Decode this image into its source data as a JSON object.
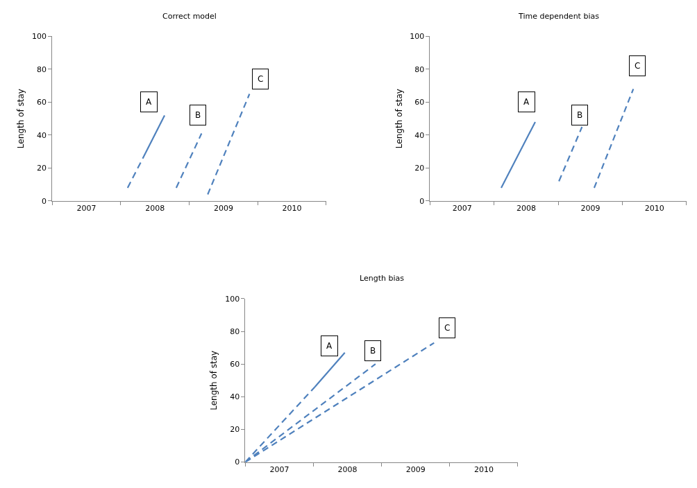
{
  "chart_data": [
    {
      "type": "line",
      "title": "Correct model",
      "ylabel": "Length of stay",
      "xlim": [
        2006.5,
        2010.5
      ],
      "xticks": [
        {
          "value": 2006.5,
          "label": null
        },
        2007,
        {
          "value": 2007.5,
          "label": null
        },
        2008,
        {
          "value": 2008.5,
          "label": null
        },
        2009,
        {
          "value": 2009.5,
          "label": null
        },
        2010,
        {
          "value": 2010.5,
          "label": null
        }
      ],
      "ylim": [
        0,
        100
      ],
      "yticks": [
        0,
        20,
        40,
        60,
        80,
        100
      ],
      "series": [
        {
          "color": "#4f81bd",
          "line_style": "dashed",
          "x": [
            2007.6,
            2007.86
          ],
          "values": [
            8,
            29
          ]
        },
        {
          "color": "#4f81bd",
          "line_style": "solid",
          "x": [
            2007.86,
            2008.14
          ],
          "values": [
            29,
            52
          ]
        },
        {
          "color": "#4f81bd",
          "line_style": "dashed",
          "x": [
            2008.31,
            2008.68
          ],
          "values": [
            8,
            41
          ]
        },
        {
          "color": "#4f81bd",
          "line_style": "dashed",
          "x": [
            2008.77,
            2009.38
          ],
          "values": [
            4,
            65
          ]
        }
      ],
      "annotations": [
        {
          "text": "A",
          "x": 2007.91,
          "y": 60
        },
        {
          "text": "B",
          "x": 2008.63,
          "y": 52
        },
        {
          "text": "C",
          "x": 2009.54,
          "y": 74
        }
      ]
    },
    {
      "type": "line",
      "title": "Time dependent bias",
      "ylabel": "Length of stay",
      "xlim": [
        2006.5,
        2010.5
      ],
      "xticks": [
        {
          "value": 2006.5,
          "label": null
        },
        2007,
        {
          "value": 2007.5,
          "label": null
        },
        2008,
        {
          "value": 2008.5,
          "label": null
        },
        2009,
        {
          "value": 2009.5,
          "label": null
        },
        2010,
        {
          "value": 2010.5,
          "label": null
        }
      ],
      "ylim": [
        0,
        100
      ],
      "yticks": [
        0,
        20,
        40,
        60,
        80,
        100
      ],
      "series": [
        {
          "color": "#4f81bd",
          "line_style": "solid",
          "x": [
            2007.61,
            2008.14
          ],
          "values": [
            8,
            48
          ]
        },
        {
          "color": "#4f81bd",
          "line_style": "dashed",
          "x": [
            2008.51,
            2008.87
          ],
          "values": [
            12,
            45
          ]
        },
        {
          "color": "#4f81bd",
          "line_style": "dashed",
          "x": [
            2009.06,
            2009.67
          ],
          "values": [
            8,
            68
          ]
        }
      ],
      "annotations": [
        {
          "text": "A",
          "x": 2008.01,
          "y": 60
        },
        {
          "text": "B",
          "x": 2008.83,
          "y": 52
        },
        {
          "text": "C",
          "x": 2009.73,
          "y": 82
        }
      ]
    },
    {
      "type": "line",
      "title": "Length bias",
      "ylabel": "Length of stay",
      "xlim": [
        2006.5,
        2010.5
      ],
      "xticks": [
        {
          "value": 2006.5,
          "label": null
        },
        2007,
        {
          "value": 2007.5,
          "label": null
        },
        2008,
        {
          "value": 2008.5,
          "label": null
        },
        2009,
        {
          "value": 2009.5,
          "label": null
        },
        2010,
        {
          "value": 2010.5,
          "label": null
        }
      ],
      "ylim": [
        0,
        100
      ],
      "yticks": [
        0,
        20,
        40,
        60,
        80,
        100
      ],
      "series": [
        {
          "color": "#4f81bd",
          "line_style": "dashed",
          "x": [
            2006.5,
            2007.52
          ],
          "values": [
            0,
            46
          ]
        },
        {
          "color": "#4f81bd",
          "line_style": "solid",
          "x": [
            2007.52,
            2007.96
          ],
          "values": [
            46,
            67
          ]
        },
        {
          "color": "#4f81bd",
          "line_style": "dashed",
          "x": [
            2006.5,
            2008.41
          ],
          "values": [
            0,
            60
          ]
        },
        {
          "color": "#4f81bd",
          "line_style": "dashed",
          "x": [
            2006.5,
            2009.27
          ],
          "values": [
            0,
            73
          ]
        }
      ],
      "annotations": [
        {
          "text": "A",
          "x": 2007.73,
          "y": 71
        },
        {
          "text": "B",
          "x": 2008.37,
          "y": 68
        },
        {
          "text": "C",
          "x": 2009.46,
          "y": 82
        }
      ]
    }
  ]
}
